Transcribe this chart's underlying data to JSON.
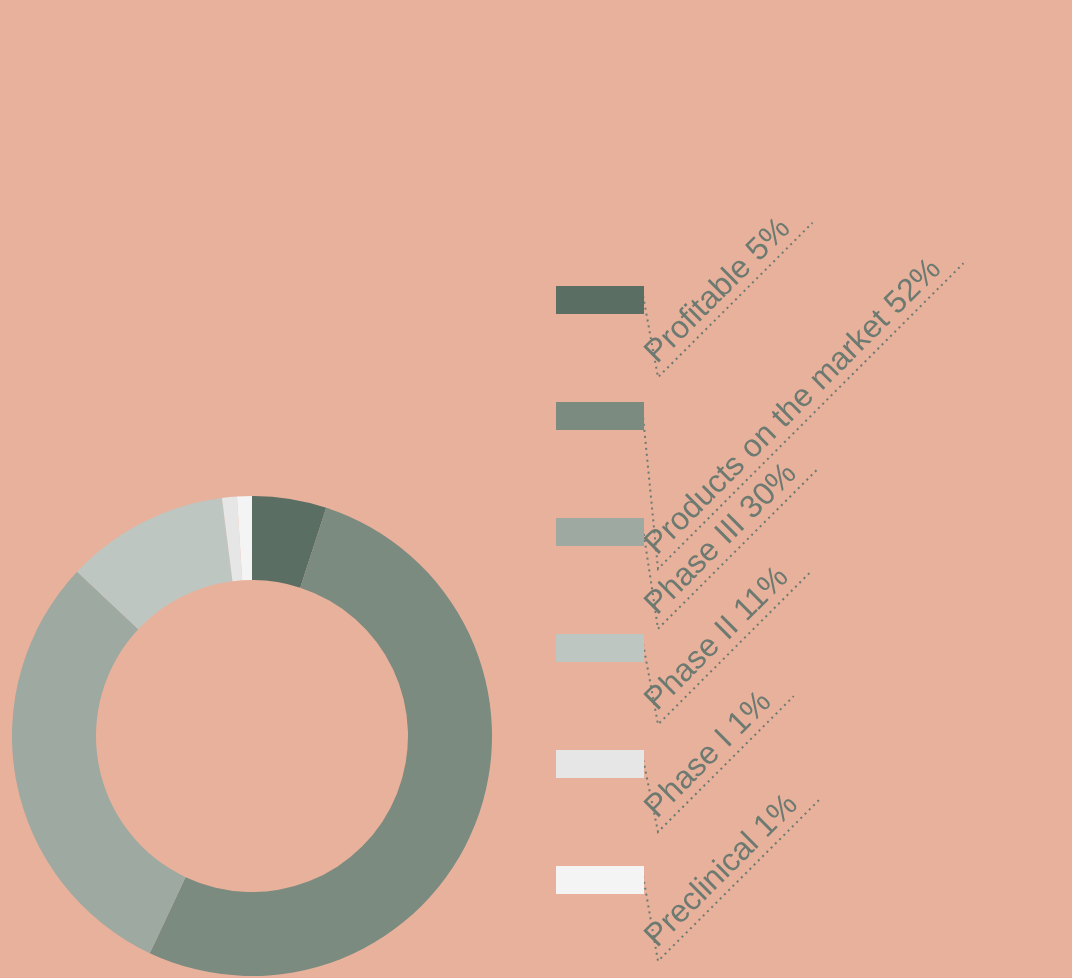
{
  "chart_data": {
    "type": "donut",
    "categories": [
      "Profitable",
      "Products on the market",
      "Phase III",
      "Phase II",
      "Phase I",
      "Preclinical"
    ],
    "values": [
      5,
      52,
      30,
      11,
      1,
      1
    ],
    "value_labels": [
      "5%",
      "52%",
      "30%",
      "11%",
      "1%",
      "1%"
    ],
    "colors": [
      "#5b6e63",
      "#7b8b80",
      "#9da9a1",
      "#bec6c1",
      "#e6e6e6",
      "#f4f4f4"
    ],
    "legend": "right"
  }
}
